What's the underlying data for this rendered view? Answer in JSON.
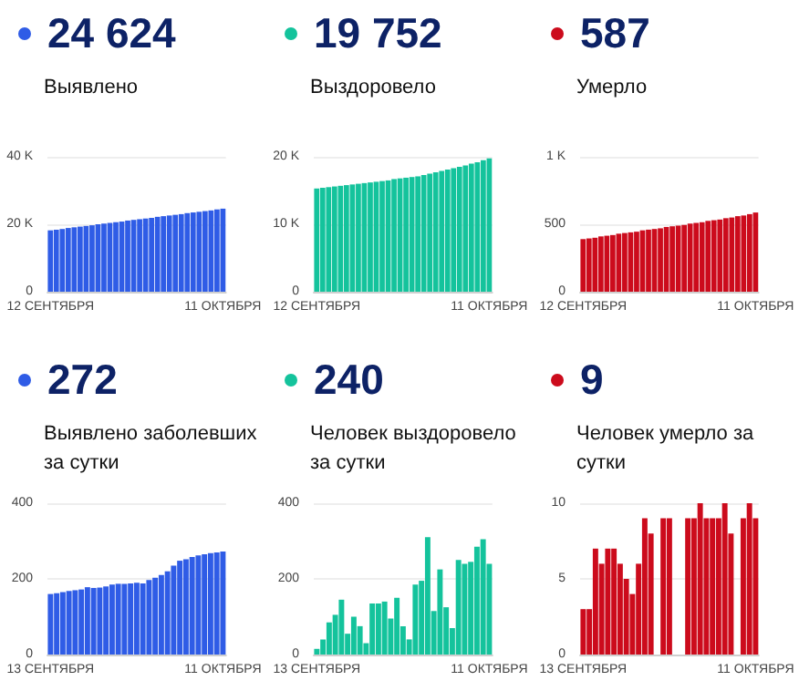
{
  "chart_data": [
    {
      "type": "bar",
      "title": "24 624",
      "subtitle": "Выявлено",
      "color": "#2f5ce6",
      "grid": "y",
      "ylim": [
        0,
        40000
      ],
      "yticks": [
        0,
        {
          "value": 20000,
          "label": "20 K"
        },
        {
          "value": 40000,
          "label": "40 K"
        }
      ],
      "categories": [
        "12 СЕНТЯБРЯ",
        null,
        null,
        null,
        null,
        null,
        null,
        null,
        null,
        null,
        null,
        null,
        null,
        null,
        null,
        null,
        null,
        null,
        null,
        null,
        null,
        null,
        null,
        null,
        null,
        null,
        null,
        null,
        null,
        "11 ОКТЯБРЯ"
      ],
      "values": [
        18200,
        18400,
        18600,
        18900,
        19100,
        19300,
        19500,
        19700,
        20000,
        20200,
        20400,
        20600,
        20800,
        21100,
        21300,
        21500,
        21700,
        21900,
        22200,
        22400,
        22600,
        22800,
        23000,
        23300,
        23500,
        23700,
        23900,
        24100,
        24400,
        24624
      ]
    },
    {
      "type": "bar",
      "title": "19 752",
      "subtitle": "Выздоровело",
      "color": "#14c39c",
      "grid": "y",
      "ylim": [
        0,
        20000
      ],
      "yticks": [
        0,
        {
          "value": 10000,
          "label": "10 K"
        },
        {
          "value": 20000,
          "label": "20 K"
        }
      ],
      "categories": [
        "12 СЕНТЯБРЯ",
        null,
        null,
        null,
        null,
        null,
        null,
        null,
        null,
        null,
        null,
        null,
        null,
        null,
        null,
        null,
        null,
        null,
        null,
        null,
        null,
        null,
        null,
        null,
        null,
        null,
        null,
        null,
        null,
        "11 ОКТЯБРЯ"
      ],
      "values": [
        15300,
        15400,
        15500,
        15600,
        15700,
        15800,
        15900,
        16000,
        16100,
        16200,
        16300,
        16400,
        16500,
        16700,
        16800,
        16900,
        17000,
        17100,
        17300,
        17500,
        17700,
        17900,
        18100,
        18300,
        18500,
        18700,
        19000,
        19200,
        19500,
        19752
      ]
    },
    {
      "type": "bar",
      "title": "587",
      "subtitle": "Умерло",
      "color": "#cc0b1c",
      "grid": "y",
      "ylim": [
        0,
        1000
      ],
      "yticks": [
        0,
        500,
        {
          "value": 1000,
          "label": "1 K"
        }
      ],
      "categories": [
        "12 СЕНТЯБРЯ",
        null,
        null,
        null,
        null,
        null,
        null,
        null,
        null,
        null,
        null,
        null,
        null,
        null,
        null,
        null,
        null,
        null,
        null,
        null,
        null,
        null,
        null,
        null,
        null,
        null,
        null,
        null,
        null,
        "11 ОКТЯБРЯ"
      ],
      "values": [
        390,
        395,
        400,
        410,
        415,
        420,
        430,
        435,
        440,
        445,
        455,
        460,
        465,
        470,
        480,
        485,
        490,
        495,
        505,
        510,
        515,
        525,
        530,
        535,
        545,
        550,
        560,
        565,
        575,
        587
      ]
    },
    {
      "type": "bar",
      "title": "272",
      "subtitle": "Выявлено заболевших за сутки",
      "color": "#2f5ce6",
      "grid": "y",
      "ylim": [
        0,
        400
      ],
      "yticks": [
        0,
        200,
        400
      ],
      "categories": [
        "13 СЕНТЯБРЯ",
        null,
        null,
        null,
        null,
        null,
        null,
        null,
        null,
        null,
        null,
        null,
        null,
        null,
        null,
        null,
        null,
        null,
        null,
        null,
        null,
        null,
        null,
        null,
        null,
        null,
        null,
        null,
        "11 ОКТЯБРЯ"
      ],
      "values": [
        160,
        162,
        165,
        168,
        170,
        172,
        178,
        176,
        177,
        180,
        185,
        187,
        187,
        188,
        190,
        188,
        197,
        203,
        210,
        220,
        235,
        248,
        252,
        258,
        262,
        265,
        268,
        270,
        272
      ]
    },
    {
      "type": "bar",
      "title": "240",
      "subtitle": "Человек выздоровело за сутки",
      "color": "#14c39c",
      "grid": "y",
      "ylim": [
        0,
        400
      ],
      "yticks": [
        0,
        200,
        400
      ],
      "categories": [
        "13 СЕНТЯБРЯ",
        null,
        null,
        null,
        null,
        null,
        null,
        null,
        null,
        null,
        null,
        null,
        null,
        null,
        null,
        null,
        null,
        null,
        null,
        null,
        null,
        null,
        null,
        null,
        null,
        null,
        null,
        null,
        "11 ОКТЯБРЯ"
      ],
      "values": [
        15,
        40,
        85,
        105,
        145,
        55,
        100,
        75,
        30,
        135,
        135,
        140,
        95,
        150,
        75,
        40,
        185,
        195,
        310,
        115,
        225,
        125,
        70,
        250,
        240,
        245,
        285,
        305,
        240
      ]
    },
    {
      "type": "bar",
      "title": "9",
      "subtitle": "Человек умерло за сутки",
      "color": "#cc0b1c",
      "grid": "y",
      "ylim": [
        0,
        10
      ],
      "yticks": [
        0,
        5,
        10
      ],
      "categories": [
        "13 СЕНТЯБРЯ",
        null,
        null,
        null,
        null,
        null,
        null,
        null,
        null,
        null,
        null,
        null,
        null,
        null,
        null,
        null,
        null,
        null,
        null,
        null,
        null,
        null,
        null,
        null,
        null,
        null,
        null,
        null,
        "11 ОКТЯБРЯ"
      ],
      "values": [
        3,
        3,
        7,
        6,
        7,
        7,
        6,
        5,
        4,
        6,
        9,
        8,
        0,
        9,
        9,
        0,
        0,
        9,
        9,
        10,
        9,
        9,
        9,
        10,
        8,
        0,
        9,
        10,
        9
      ]
    }
  ]
}
